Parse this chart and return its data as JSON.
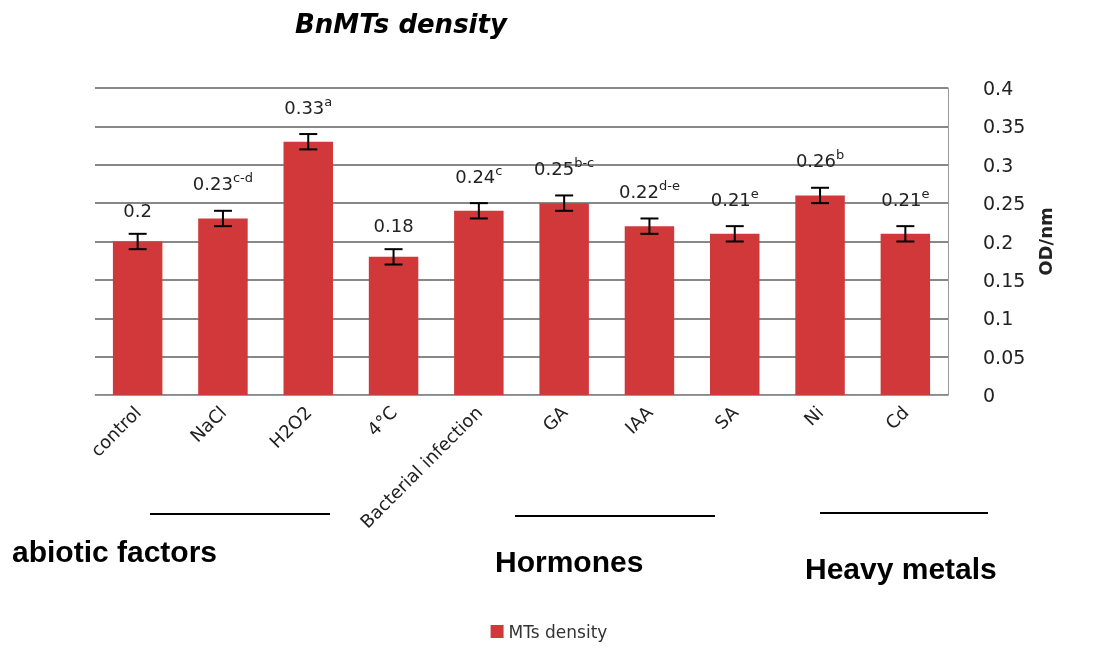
{
  "chart_data": {
    "type": "bar",
    "title": "BnMTs density",
    "ylabel": "OD/nm",
    "categories": [
      "control",
      "NaCl",
      "H2O2",
      "4°C",
      "Bacterial infection",
      "GA",
      "IAA",
      "SA",
      "Ni",
      "Cd"
    ],
    "series": [
      {
        "name": "MTs density",
        "color": "#d0383a",
        "values": [
          0.2,
          0.23,
          0.33,
          0.18,
          0.24,
          0.25,
          0.22,
          0.21,
          0.26,
          0.21
        ],
        "errors": [
          0.01,
          0.01,
          0.01,
          0.01,
          0.01,
          0.01,
          0.01,
          0.01,
          0.01,
          0.01
        ],
        "value_labels": [
          "0.2",
          "0.23$^{c-d}$",
          "0.33$^{a}$",
          "0.18",
          "0.24$^{c}$",
          "0.25$^{b-c}$",
          "0.22$^{d-e}$",
          "0.21$^{e}$",
          "0.26$^{b}$",
          "0.21$^{e}$"
        ]
      }
    ],
    "ylim": [
      0,
      0.4
    ],
    "yticks": [
      0,
      0.05,
      0.1,
      0.15,
      0.2,
      0.25,
      0.3,
      0.35,
      0.4
    ],
    "grid": "y",
    "legend": "bottom",
    "annotations": [
      "abiotic factors",
      "Hormones",
      "Heavy metals"
    ]
  }
}
